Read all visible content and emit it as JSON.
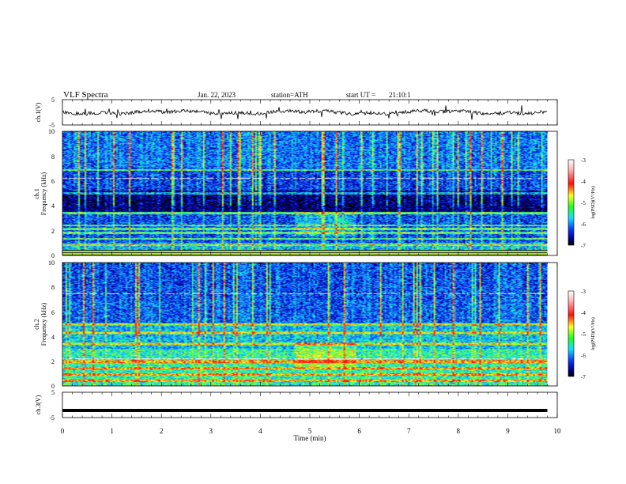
{
  "header": {
    "title": "VLF Spectra",
    "date": "Jan. 22, 2023",
    "station": "station=ATH",
    "start_label": "start UT =",
    "start_time": "21:10:1"
  },
  "colors": {
    "black": "#000000",
    "navy": "#00008b",
    "blue": "#1e3cff",
    "cyan": "#20d0ff",
    "green": "#40ff40",
    "yellow": "#ffff40",
    "red": "#ff2020",
    "white": "#ffffff"
  },
  "chart_data": [
    {
      "type": "line",
      "panel": "ch1-waveform",
      "ylabel": "ch.1(V)",
      "ylim": [
        -5,
        5
      ],
      "yticks": [
        "5",
        "-5"
      ],
      "x": [
        0,
        1,
        2,
        3,
        4,
        5,
        6,
        7,
        8,
        9,
        9.8
      ],
      "series": [
        {
          "values": [
            0,
            0,
            0,
            0,
            0,
            0,
            0,
            0,
            0,
            0,
            0
          ]
        }
      ]
    },
    {
      "type": "heatmap",
      "panel": "ch1-spectrogram",
      "ylabel": "ch.1 Frequency (kHz)",
      "ylim": [
        0,
        10
      ],
      "yticks": [
        "0",
        "2",
        "4",
        "6",
        "8",
        "10"
      ],
      "colorbar_label": "log(PSD)(V²/Hz)",
      "colorbar_ticks": [
        "-3",
        "-4",
        "-5",
        "-6",
        "-7"
      ],
      "colorbar_range": [
        -7,
        -3
      ],
      "data_end_min": 9.8,
      "bright_bands_khz": [
        0.3,
        0.8,
        1.3,
        1.8,
        2.1,
        2.4,
        3.4,
        5.0,
        6.9
      ]
    },
    {
      "type": "heatmap",
      "panel": "ch2-spectrogram",
      "ylabel": "ch.2 Frequency (kHz)",
      "ylim": [
        0,
        10
      ],
      "yticks": [
        "0",
        "2",
        "4",
        "6",
        "8",
        "10"
      ],
      "colorbar_label": "log(PSD)(V²/Hz)",
      "colorbar_ticks": [
        "-3",
        "-4",
        "-5",
        "-6",
        "-7"
      ],
      "colorbar_range": [
        -7,
        -3
      ],
      "data_end_min": 9.8,
      "bright_bands_khz": [
        0.4,
        0.9,
        1.4,
        1.9,
        2.0,
        3.4,
        4.3,
        5.0
      ]
    },
    {
      "type": "line",
      "panel": "ch3-waveform",
      "ylabel": "ch.3(V)",
      "ylim": [
        -5,
        5
      ],
      "yticks": [
        "5",
        "-5"
      ],
      "x": [
        0,
        9.8
      ],
      "series": [
        {
          "values": [
            -2.2,
            -2.2
          ]
        }
      ]
    }
  ],
  "xaxis": {
    "label": "Time (min)",
    "ticks": [
      "0",
      "1",
      "2",
      "3",
      "4",
      "5",
      "6",
      "7",
      "8",
      "9",
      "10"
    ],
    "xlim": [
      0,
      10
    ]
  }
}
